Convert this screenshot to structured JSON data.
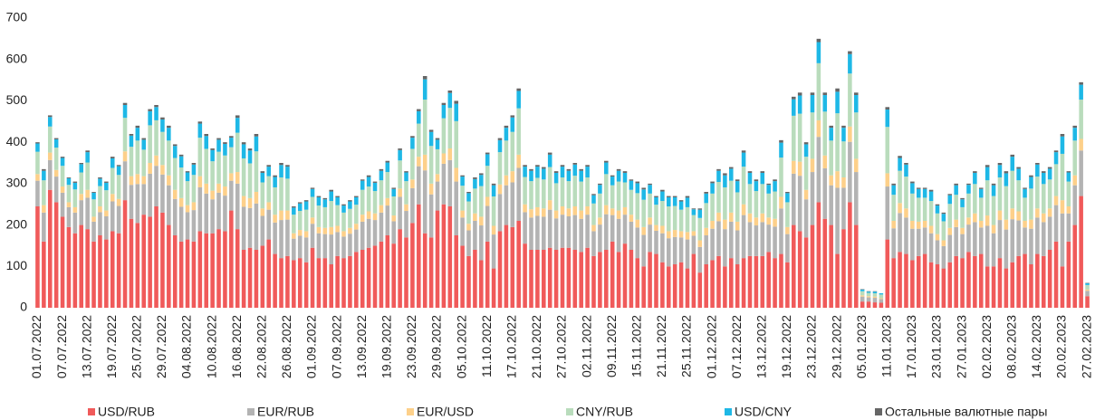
{
  "chart_data": {
    "type": "stacked_bar",
    "categories": [
      "01.07.2022",
      null,
      null,
      null,
      "07.07.2022",
      null,
      null,
      null,
      "13.07.2022",
      null,
      null,
      null,
      "19.07.2022",
      null,
      null,
      null,
      "25.07.2022",
      null,
      null,
      null,
      "29.07.2022",
      null,
      null,
      null,
      "04.08.2022",
      null,
      null,
      null,
      "10.08.2022",
      null,
      null,
      null,
      "16.08.2022",
      null,
      null,
      null,
      "22.08.2022",
      null,
      null,
      null,
      "26.08.2022",
      null,
      null,
      null,
      "01.09.2022",
      null,
      null,
      null,
      "07.09.2022",
      null,
      null,
      null,
      "13.09.2022",
      null,
      null,
      null,
      "19.09.2022",
      null,
      null,
      null,
      "23.09.2022",
      null,
      null,
      null,
      "29.09.2022",
      null,
      null,
      null,
      "05.10.2022",
      null,
      null,
      null,
      "11.10.2022",
      null,
      null,
      null,
      "17.10.2022",
      null,
      null,
      null,
      "21.10.2022",
      null,
      null,
      null,
      "27.10.2022",
      null,
      null,
      null,
      "02.11.2022",
      null,
      null,
      null,
      "09.11.2022",
      null,
      null,
      null,
      "15.11.2022",
      null,
      null,
      null,
      "21.11.2022",
      null,
      null,
      null,
      "25.11.2022",
      null,
      null,
      null,
      "01.12.2022",
      null,
      null,
      null,
      "07.12.2022",
      null,
      null,
      null,
      "13.12.2022",
      null,
      null,
      null,
      "19.12.2022",
      null,
      null,
      null,
      "23.12.2022",
      null,
      null,
      null,
      "29.12.2022",
      null,
      null,
      null,
      "05.01.2023",
      null,
      null,
      null,
      "11.01.2023",
      null,
      null,
      null,
      "17.01.2023",
      null,
      null,
      null,
      "23.01.2023",
      null,
      null,
      null,
      "27.01.2023",
      null,
      null,
      null,
      "02.02.2023",
      null,
      null,
      null,
      "08.02.2023",
      null,
      null,
      null,
      "14.02.2023",
      null,
      null,
      null,
      "20.02.2023",
      null,
      null,
      null,
      "27.02.2023"
    ],
    "series": [
      {
        "name": "USD/RUB",
        "color": "#f05a5a",
        "values": [
          245,
          160,
          285,
          255,
          220,
          195,
          180,
          200,
          190,
          160,
          175,
          165,
          185,
          180,
          260,
          215,
          205,
          225,
          220,
          245,
          230,
          200,
          175,
          160,
          165,
          160,
          185,
          180,
          180,
          190,
          185,
          235,
          190,
          140,
          145,
          140,
          150,
          165,
          130,
          120,
          125,
          115,
          120,
          110,
          145,
          120,
          120,
          105,
          125,
          120,
          125,
          135,
          140,
          145,
          150,
          160,
          175,
          155,
          190,
          170,
          205,
          250,
          180,
          170,
          235,
          250,
          245,
          175,
          150,
          125,
          140,
          115,
          160,
          95,
          185,
          200,
          195,
          210,
          155,
          140,
          140,
          140,
          145,
          140,
          145,
          145,
          140,
          135,
          145,
          125,
          135,
          140,
          160,
          135,
          155,
          140,
          120,
          100,
          135,
          130,
          110,
          100,
          105,
          110,
          95,
          130,
          85,
          105,
          115,
          125,
          100,
          120,
          105,
          120,
          125,
          125,
          125,
          135,
          120,
          130,
          110,
          200,
          185,
          170,
          200,
          255,
          215,
          200,
          130,
          190,
          255,
          200,
          15,
          15,
          13,
          12,
          165,
          120,
          135,
          130,
          115,
          125,
          130,
          110,
          105,
          95,
          110,
          125,
          120,
          135,
          125,
          130,
          100,
          100,
          120,
          95,
          110,
          125,
          130,
          105,
          130,
          125,
          140,
          160,
          100,
          160,
          200,
          270,
          28
        ]
      },
      {
        "name": "EUR/RUB",
        "color": "#b3b3b3",
        "values": [
          62,
          70,
          72,
          62,
          58,
          48,
          50,
          60,
          76,
          48,
          56,
          56,
          72,
          66,
          94,
          82,
          94,
          74,
          104,
          98,
          92,
          96,
          88,
          84,
          66,
          76,
          106,
          96,
          82,
          88,
          86,
          72,
          110,
          104,
          96,
          112,
          72,
          72,
          76,
          92,
          88,
          52,
          54,
          60,
          58,
          60,
          58,
          72,
          58,
          52,
          54,
          54,
          68,
          70,
          62,
          70,
          72,
          54,
          78,
          64,
          84,
          92,
          152,
          104,
          70,
          98,
          112,
          130,
          68,
          62,
          70,
          84,
          86,
          82,
          90,
          96,
          108,
          128,
          76,
          78,
          82,
          80,
          92,
          76,
          80,
          76,
          84,
          80,
          80,
          60,
          66,
          86,
          64,
          80,
          70,
          68,
          74,
          76,
          66,
          56,
          70,
          68,
          66,
          60,
          70,
          44,
          62,
          70,
          76,
          84,
          90,
          88,
          82,
          104,
          82,
          74,
          82,
          66,
          76,
          110,
          68,
          124,
          134,
          92,
          128,
          158,
          122,
          96,
          160,
          100,
          146,
          128,
          12,
          10,
          11,
          9,
          128,
          72,
          94,
          88,
          76,
          66,
          64,
          70,
          58,
          54,
          66,
          70,
          58,
          66,
          82,
          64,
          98,
          80,
          92,
          94,
          104,
          86,
          64,
          86,
          88,
          82,
          80,
          88,
          128,
          68,
          96,
          110,
          13
        ]
      },
      {
        "name": "EUR/USD",
        "color": "#fdd08a",
        "values": [
          16,
          18,
          18,
          16,
          15,
          12,
          13,
          15,
          19,
          12,
          14,
          14,
          18,
          17,
          24,
          21,
          24,
          19,
          26,
          25,
          23,
          24,
          22,
          21,
          17,
          19,
          27,
          24,
          21,
          22,
          22,
          18,
          28,
          26,
          24,
          28,
          18,
          18,
          19,
          23,
          22,
          13,
          14,
          15,
          15,
          15,
          15,
          18,
          15,
          13,
          14,
          14,
          17,
          18,
          16,
          18,
          18,
          14,
          20,
          16,
          21,
          23,
          38,
          26,
          18,
          25,
          28,
          33,
          17,
          16,
          18,
          21,
          22,
          21,
          23,
          24,
          27,
          32,
          19,
          20,
          21,
          20,
          23,
          19,
          20,
          19,
          21,
          20,
          20,
          15,
          17,
          22,
          16,
          20,
          18,
          17,
          19,
          19,
          17,
          14,
          18,
          17,
          17,
          15,
          18,
          11,
          16,
          18,
          19,
          21,
          23,
          22,
          21,
          26,
          21,
          19,
          21,
          17,
          19,
          28,
          17,
          31,
          34,
          23,
          32,
          40,
          31,
          24,
          40,
          25,
          37,
          32,
          3,
          3,
          3,
          2,
          32,
          18,
          24,
          22,
          19,
          17,
          16,
          18,
          15,
          14,
          17,
          18,
          15,
          17,
          21,
          16,
          25,
          20,
          23,
          24,
          26,
          22,
          16,
          22,
          22,
          21,
          20,
          22,
          32,
          17,
          24,
          28,
          3
        ]
      },
      {
        "name": "CNY/RUB",
        "color": "#b9dcbc",
        "values": [
          54,
          60,
          63,
          54,
          50,
          42,
          43,
          52,
          66,
          42,
          49,
          49,
          63,
          58,
          81,
          71,
          81,
          64,
          91,
          85,
          80,
          84,
          77,
          74,
          58,
          66,
          93,
          84,
          71,
          77,
          75,
          63,
          95,
          91,
          84,
          98,
          63,
          63,
          66,
          80,
          77,
          45,
          46,
          52,
          50,
          52,
          50,
          63,
          50,
          45,
          46,
          46,
          60,
          60,
          54,
          60,
          63,
          46,
          68,
          56,
          74,
          80,
          133,
          91,
          60,
          85,
          98,
          113,
          60,
          54,
          60,
          74,
          75,
          71,
          78,
          84,
          95,
          112,
          66,
          68,
          71,
          70,
          80,
          66,
          70,
          66,
          74,
          70,
          70,
          52,
          58,
          75,
          56,
          70,
          60,
          60,
          64,
          66,
          58,
          49,
          60,
          60,
          58,
          52,
          60,
          39,
          54,
          60,
          66,
          74,
          78,
          77,
          71,
          91,
          71,
          64,
          71,
          58,
          66,
          95,
          60,
          109,
          116,
          80,
          112,
          138,
          106,
          84,
          140,
          87,
          128,
          112,
          10,
          8,
          8,
          9,
          112,
          63,
          78,
          77,
          66,
          58,
          56,
          60,
          50,
          46,
          58,
          60,
          50,
          58,
          71,
          56,
          85,
          70,
          80,
          81,
          91,
          75,
          56,
          75,
          77,
          71,
          70,
          77,
          112,
          60,
          84,
          95,
          11
        ]
      },
      {
        "name": "USD/CNY",
        "color": "#1eb8e6",
        "values": [
          20,
          23,
          23,
          20,
          19,
          16,
          16,
          20,
          25,
          16,
          18,
          18,
          23,
          21,
          31,
          27,
          31,
          24,
          34,
          32,
          30,
          31,
          29,
          27,
          21,
          25,
          34,
          31,
          27,
          29,
          28,
          23,
          36,
          34,
          31,
          36,
          23,
          23,
          25,
          30,
          29,
          17,
          18,
          20,
          19,
          20,
          19,
          23,
          19,
          17,
          18,
          18,
          22,
          23,
          20,
          23,
          23,
          18,
          25,
          21,
          27,
          30,
          49,
          34,
          23,
          32,
          36,
          42,
          22,
          20,
          23,
          27,
          28,
          27,
          29,
          31,
          35,
          42,
          25,
          25,
          27,
          26,
          30,
          25,
          26,
          25,
          27,
          26,
          26,
          20,
          21,
          28,
          21,
          26,
          23,
          22,
          24,
          25,
          21,
          18,
          23,
          22,
          21,
          20,
          23,
          14,
          20,
          23,
          25,
          27,
          29,
          29,
          27,
          34,
          27,
          24,
          27,
          21,
          25,
          36,
          22,
          40,
          44,
          30,
          42,
          51,
          40,
          31,
          52,
          33,
          47,
          42,
          4,
          3,
          4,
          3,
          42,
          23,
          31,
          29,
          25,
          21,
          21,
          23,
          19,
          18,
          21,
          23,
          19,
          21,
          27,
          21,
          32,
          26,
          30,
          31,
          34,
          28,
          21,
          28,
          29,
          27,
          26,
          29,
          42,
          22,
          31,
          36,
          4
        ]
      },
      {
        "name": "Остальные валютные пары",
        "color": "#666666",
        "values": [
          3,
          4,
          4,
          3,
          3,
          2,
          3,
          3,
          4,
          2,
          3,
          3,
          4,
          3,
          5,
          4,
          5,
          4,
          5,
          5,
          5,
          5,
          4,
          4,
          3,
          4,
          5,
          5,
          4,
          4,
          4,
          4,
          6,
          5,
          5,
          6,
          4,
          4,
          4,
          5,
          4,
          3,
          3,
          3,
          3,
          3,
          3,
          4,
          3,
          3,
          3,
          3,
          3,
          4,
          3,
          4,
          4,
          3,
          4,
          3,
          4,
          5,
          8,
          5,
          4,
          5,
          6,
          7,
          3,
          3,
          4,
          4,
          4,
          4,
          5,
          5,
          5,
          6,
          4,
          4,
          4,
          4,
          5,
          4,
          4,
          4,
          4,
          4,
          4,
          3,
          3,
          4,
          3,
          4,
          4,
          3,
          4,
          4,
          3,
          3,
          4,
          3,
          3,
          3,
          4,
          2,
          3,
          4,
          4,
          4,
          5,
          4,
          4,
          5,
          4,
          4,
          4,
          3,
          4,
          6,
          3,
          6,
          7,
          5,
          6,
          8,
          6,
          5,
          8,
          5,
          7,
          6,
          1,
          1,
          1,
          0,
          6,
          4,
          5,
          4,
          4,
          3,
          3,
          4,
          3,
          3,
          3,
          4,
          3,
          3,
          4,
          3,
          5,
          4,
          5,
          5,
          5,
          4,
          3,
          4,
          4,
          4,
          4,
          4,
          6,
          3,
          5,
          6,
          1
        ]
      }
    ],
    "ylim": [
      0,
      700
    ],
    "yticks": [
      0,
      100,
      200,
      300,
      400,
      500,
      600,
      700
    ]
  }
}
